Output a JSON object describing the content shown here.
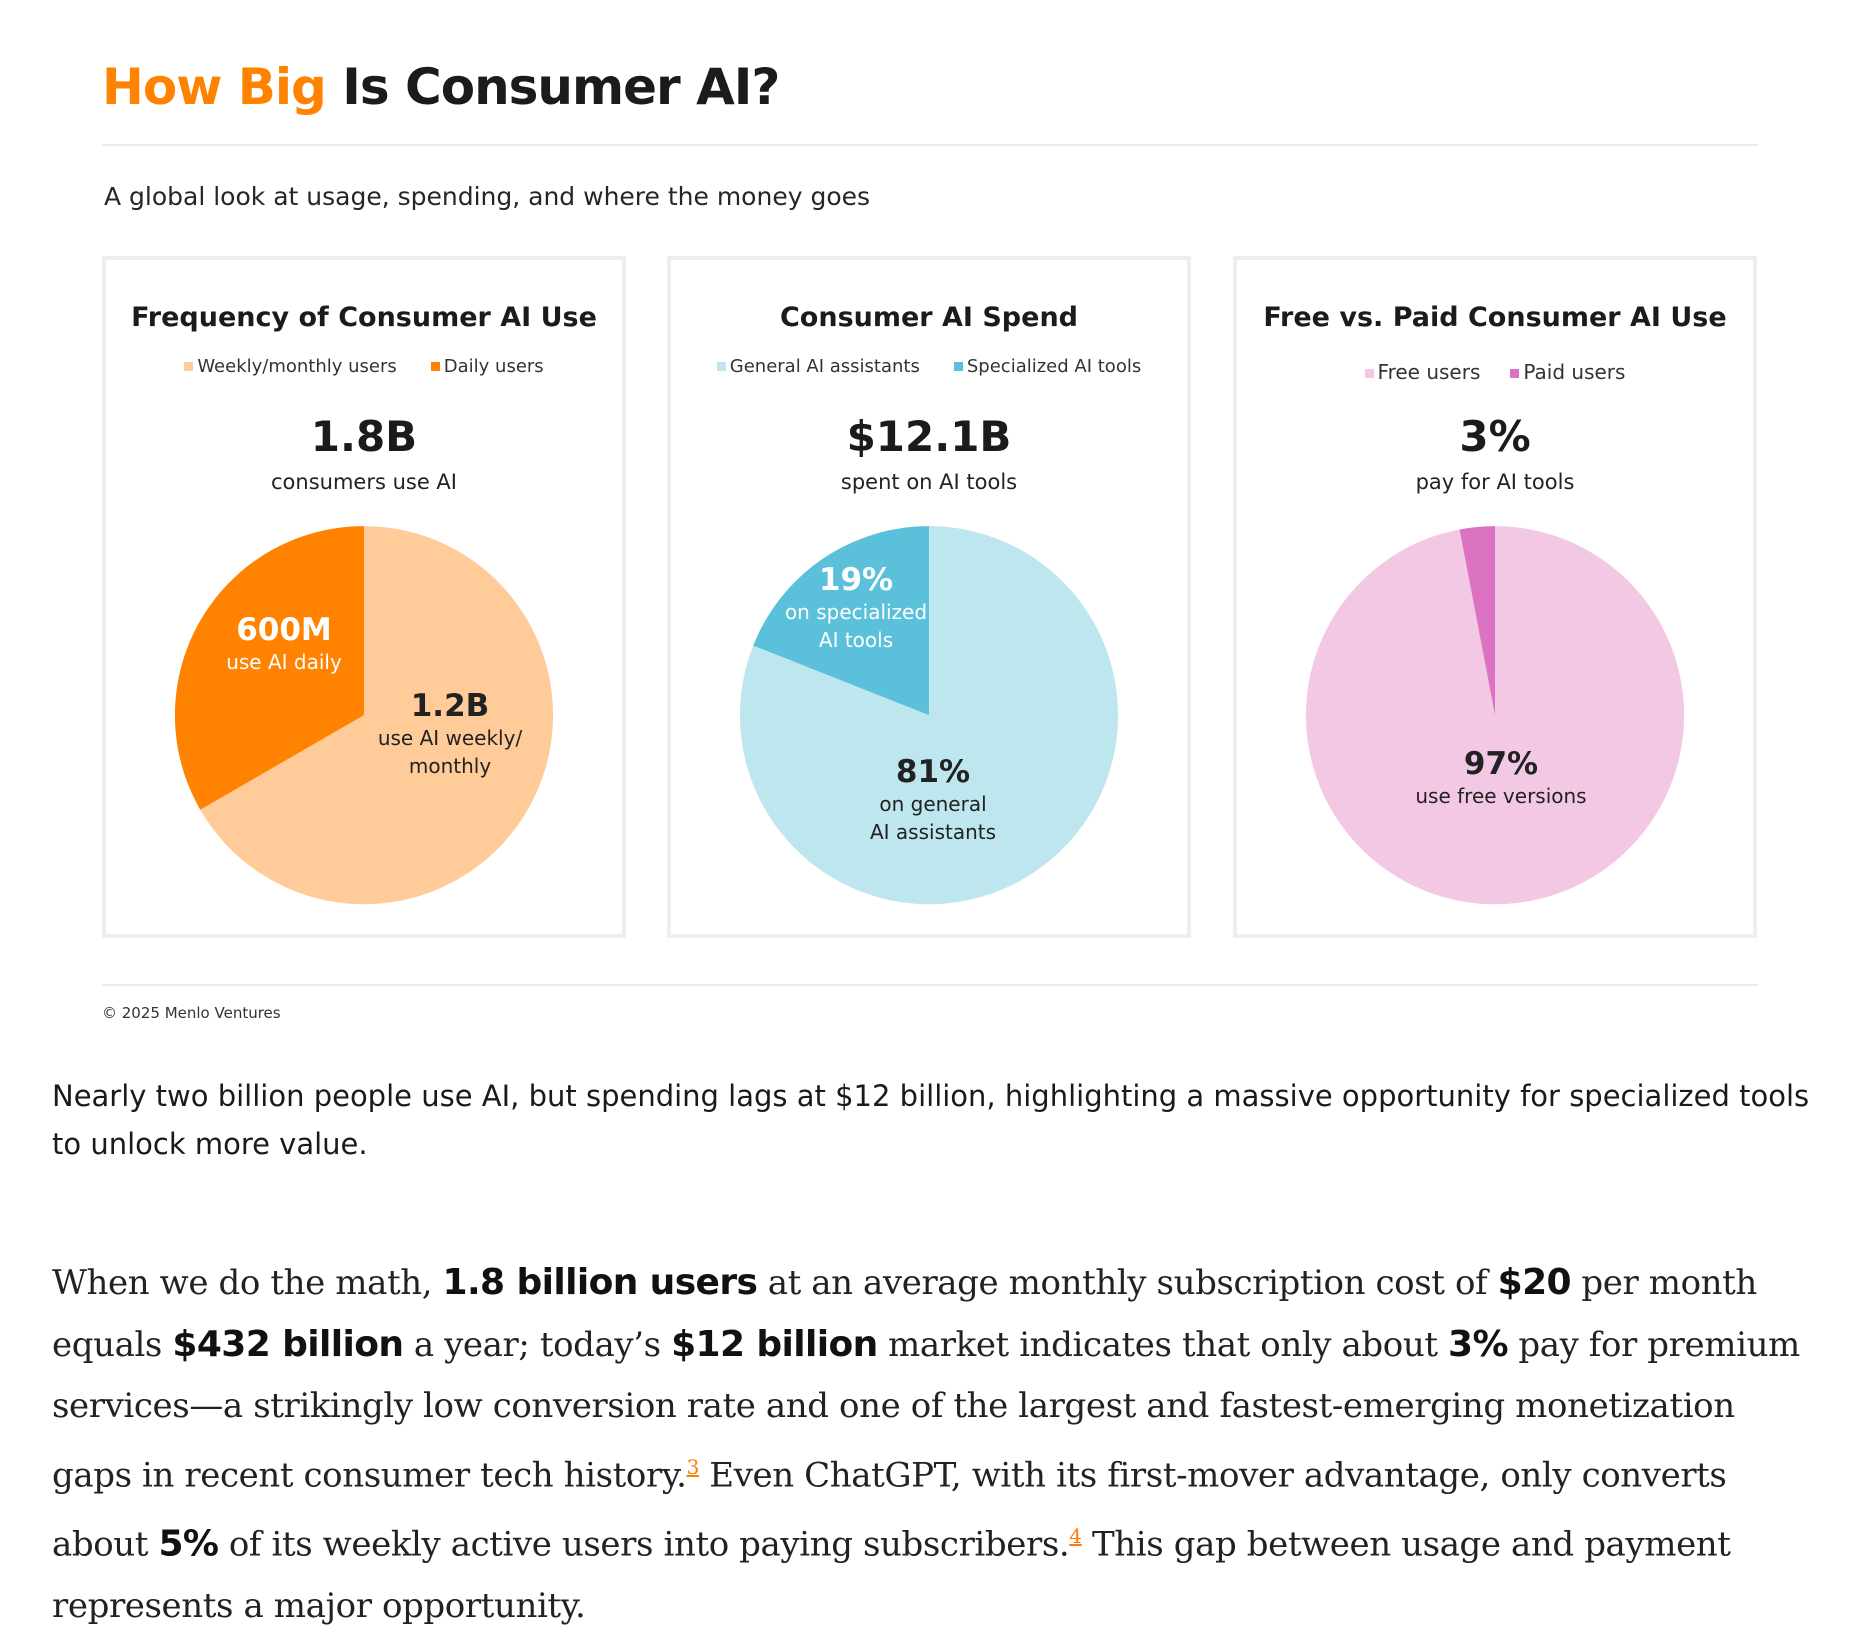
{
  "header": {
    "title_accent": "How Big",
    "title_rest": " Is Consumer AI?",
    "subtitle": "A global look at usage, spending, and where the money goes"
  },
  "colors": {
    "brand_orange": "#ff8200",
    "panel_border": "#eeeeee"
  },
  "chart_data": [
    {
      "type": "pie",
      "title": "Frequency of Consumer AI Use",
      "headline": "1.8B",
      "headline_sub": "consumers use AI",
      "legend": [
        "Weekly/monthly users",
        "Daily users"
      ],
      "slices": [
        {
          "name": "Weekly/monthly users",
          "value": 1.2,
          "color": "#ffcc99",
          "label_value": "1.2B",
          "label_lines": [
            "use AI weekly/",
            "monthly"
          ]
        },
        {
          "name": "Daily users",
          "value": 0.6,
          "color": "#ff8200",
          "label_value": "600M",
          "label_lines": [
            "use AI daily"
          ]
        }
      ]
    },
    {
      "type": "pie",
      "title": "Consumer AI Spend",
      "headline": "$12.1B",
      "headline_sub": "spent on AI tools",
      "legend": [
        "General AI assistants",
        "Specialized AI tools"
      ],
      "slices": [
        {
          "name": "General AI assistants",
          "value": 81,
          "color": "#bee6ee",
          "label_value": "81%",
          "label_lines": [
            "on general",
            "AI assistants"
          ]
        },
        {
          "name": "Specialized AI tools",
          "value": 19,
          "color": "#5bc1da",
          "label_value": "19%",
          "label_lines": [
            "on specialized",
            "AI tools"
          ]
        }
      ]
    },
    {
      "type": "pie",
      "title": "Free vs. Paid Consumer AI Use",
      "headline": "3%",
      "headline_sub": "pay for AI tools",
      "legend": [
        "Free users",
        "Paid users"
      ],
      "slices": [
        {
          "name": "Free users",
          "value": 97,
          "color": "#f2c8e5",
          "label_value": "97%",
          "label_lines": [
            "use free versions"
          ]
        },
        {
          "name": "Paid users",
          "value": 3,
          "color": "#dc72c2",
          "label_value": "",
          "label_lines": []
        }
      ]
    }
  ],
  "footer": {
    "copyright": "© 2025 Menlo Ventures"
  },
  "article": {
    "caption": "Nearly two billion people use AI, but spending lags at $12 billion, highlighting a massive opportunity for specialized tools to unlock more value.",
    "p": {
      "t1": "When we do the math, ",
      "b1": "1.8 billion users",
      "t2": " at an average monthly subscription cost of ",
      "b2": "$20",
      "t3": " per month equals ",
      "b3": "$432 billion",
      "t4": " a year; today’s ",
      "b4": "$12 billion",
      "t5": " market indicates that only about ",
      "b5": "3%",
      "t6": " pay for premium services—a strikingly low conversion rate and one of the largest and fastest-emerging monetization gaps in recent consumer tech history.",
      "fn1": "3",
      "t7": " Even ChatGPT, with its first-mover advantage, only converts about ",
      "b6": "5%",
      "t8": " of its weekly active users into paying subscribers.",
      "fn2": "4",
      "t9": " This gap between usage and payment represents a major opportunity."
    }
  }
}
